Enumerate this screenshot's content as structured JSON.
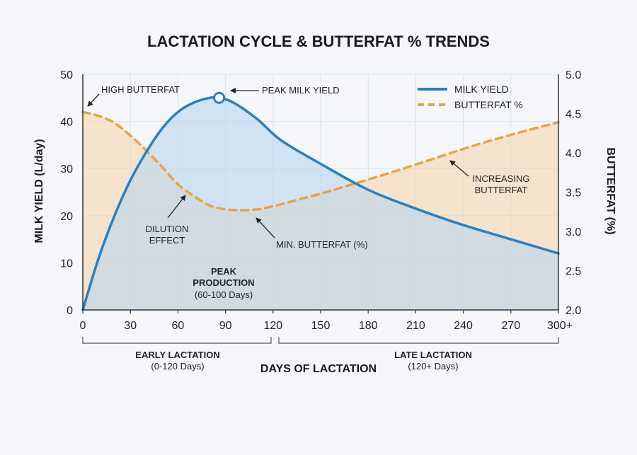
{
  "chart_data": {
    "type": "line",
    "title": "LACTATION CYCLE & BUTTERFAT % TRENDS",
    "xlabel": "DAYS OF LACTATION",
    "ylabel_left": "MILK YIELD (L/day)",
    "ylabel_right": "BUTTERFAT (%)",
    "x_ticks": [
      "0",
      "30",
      "60",
      "90",
      "120",
      "150",
      "180",
      "210",
      "240",
      "270",
      "300+"
    ],
    "y_left_ticks": [
      "0",
      "10",
      "20",
      "30",
      "40",
      "50"
    ],
    "y_right_ticks": [
      "2.0",
      "2.5",
      "3.0",
      "3.5",
      "4.0",
      "4.5",
      "5.0"
    ],
    "xlim": [
      0,
      300
    ],
    "ylim_left": [
      0,
      50
    ],
    "ylim_right": [
      2.0,
      5.0
    ],
    "grid": true,
    "legend_position": "top-right",
    "colors": {
      "milk": "#2a7fc1",
      "butterfat": "#e8a24a"
    },
    "series": [
      {
        "name": "MILK YIELD",
        "axis": "left",
        "x": [
          0,
          10,
          20,
          30,
          40,
          50,
          60,
          70,
          80,
          86,
          95,
          110,
          125,
          150,
          180,
          210,
          240,
          270,
          300
        ],
        "values": [
          0,
          11,
          20,
          27.5,
          33.5,
          38.5,
          42,
          44,
          45,
          45,
          44,
          40.5,
          36,
          31,
          25.5,
          21.5,
          18,
          15,
          12
        ]
      },
      {
        "name": "BUTTERFAT %",
        "axis": "right",
        "x": [
          0,
          10,
          20,
          30,
          40,
          50,
          60,
          70,
          80,
          90,
          100,
          110,
          120,
          135,
          150,
          165,
          180,
          210,
          240,
          270,
          300
        ],
        "values": [
          4.52,
          4.47,
          4.38,
          4.22,
          4.03,
          3.82,
          3.6,
          3.45,
          3.33,
          3.28,
          3.27,
          3.28,
          3.32,
          3.4,
          3.48,
          3.57,
          3.66,
          3.85,
          4.05,
          4.23,
          4.39
        ]
      }
    ],
    "peak_point": {
      "x": 86,
      "y": 45
    },
    "annotations": {
      "high_butterfat": "HIGH BUTTERFAT",
      "peak_milk": "PEAK MILK YIELD",
      "dilution_1": "DILUTION",
      "dilution_2": "EFFECT",
      "min_butterfat": "MIN. BUTTERFAT (%)",
      "increasing_1": "INCREASING",
      "increasing_2": "BUTTERFAT",
      "peak_prod_1": "PEAK",
      "peak_prod_2": "PRODUCTION",
      "peak_prod_3": "(60-100 Days)"
    },
    "phases": {
      "early_1": "EARLY LACTATION",
      "early_2": "(0-120 Days)",
      "late_1": "LATE LACTATION",
      "late_2": "(120+ Days)"
    }
  }
}
